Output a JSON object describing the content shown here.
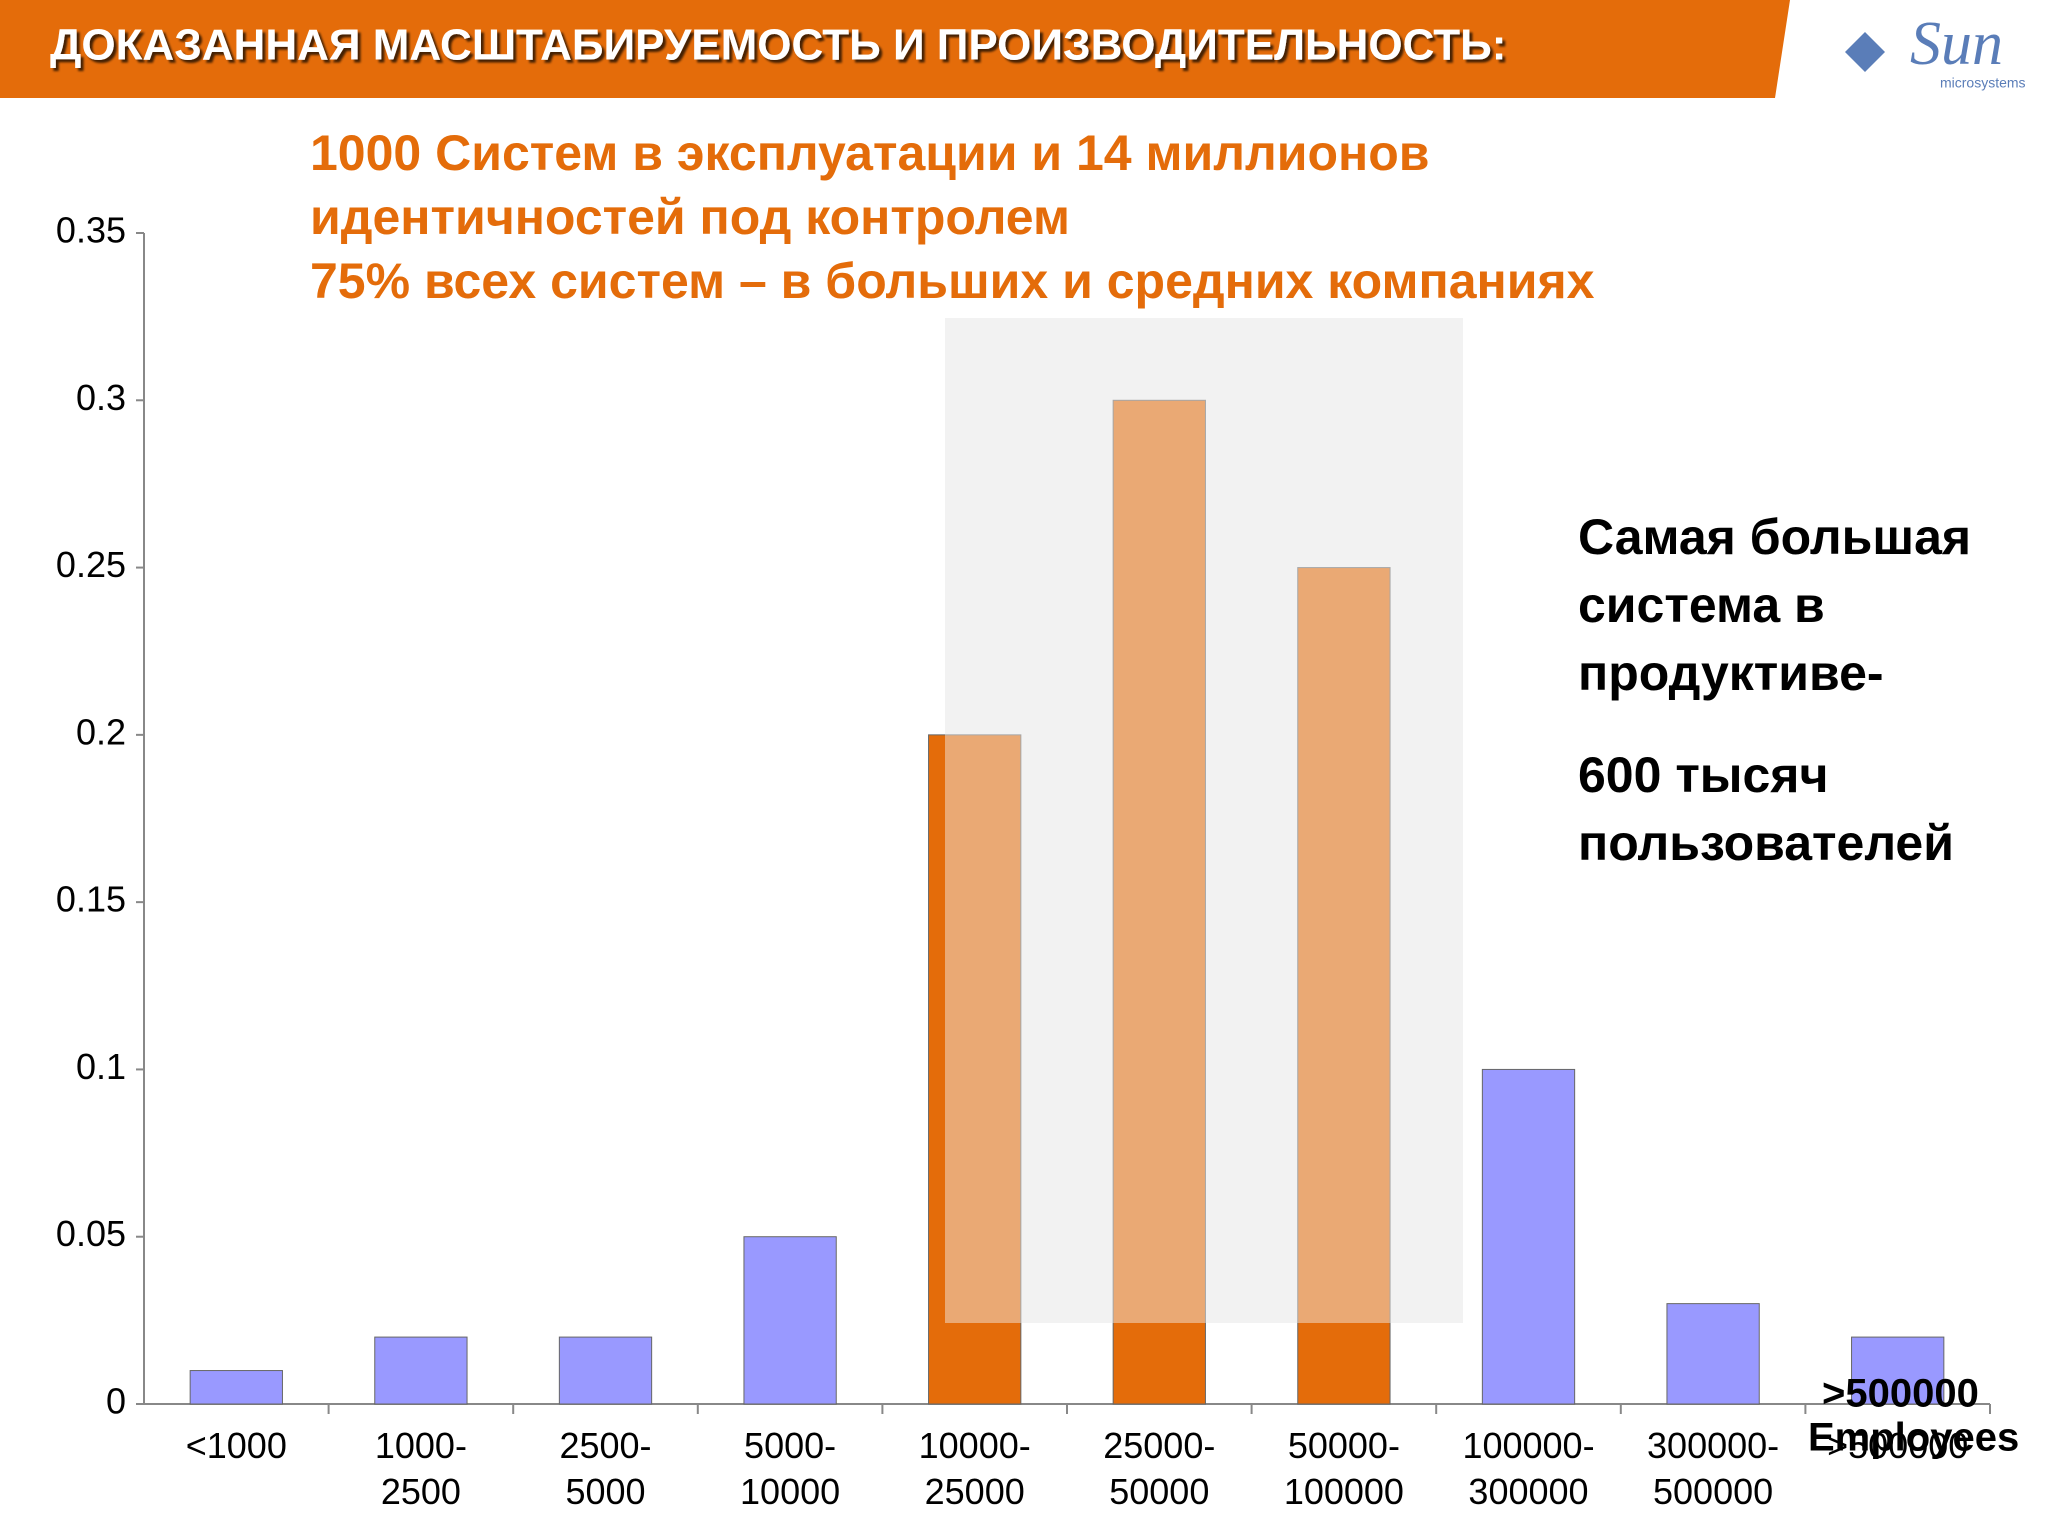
{
  "header": {
    "title": "ДОКАЗАННАЯ МАСШТАБИРУЕМОСТЬ И ПРОИЗВОДИТЕЛЬНОСТЬ:",
    "logo": "Sun",
    "logo_sub": "microsystems"
  },
  "chart_data": {
    "type": "bar",
    "subtitle": [
      "1000   Систем  в эксплуатации и 14 миллионов",
      "идентичностей под контролем",
      "75% всех систем  – в больших и средних компаниях"
    ],
    "annotation": [
      "Самая большая",
      "система в",
      "продуктиве-",
      "600 тысяч",
      "пользователей"
    ],
    "unit_label": [
      ">500000",
      "Employees"
    ],
    "categories": [
      "<1000",
      "1000-\n2500",
      "2500-\n5000",
      "5000-\n10000",
      "10000-\n25000",
      "25000-\n50000",
      "50000-\n100000",
      "100000-\n300000",
      "300000-\n500000",
      ">500000"
    ],
    "values": [
      0.01,
      0.02,
      0.02,
      0.05,
      0.2,
      0.3,
      0.25,
      0.1,
      0.03,
      0.02
    ],
    "colors": [
      "#9999ff",
      "#9999ff",
      "#9999ff",
      "#9999ff",
      "#e46c0a",
      "#e46c0a",
      "#e46c0a",
      "#9999ff",
      "#9999ff",
      "#9999ff"
    ],
    "ylim": [
      0,
      0.35
    ],
    "yticks": [
      0,
      0.05,
      0.1,
      0.15,
      0.2,
      0.25,
      0.3,
      0.35
    ]
  }
}
